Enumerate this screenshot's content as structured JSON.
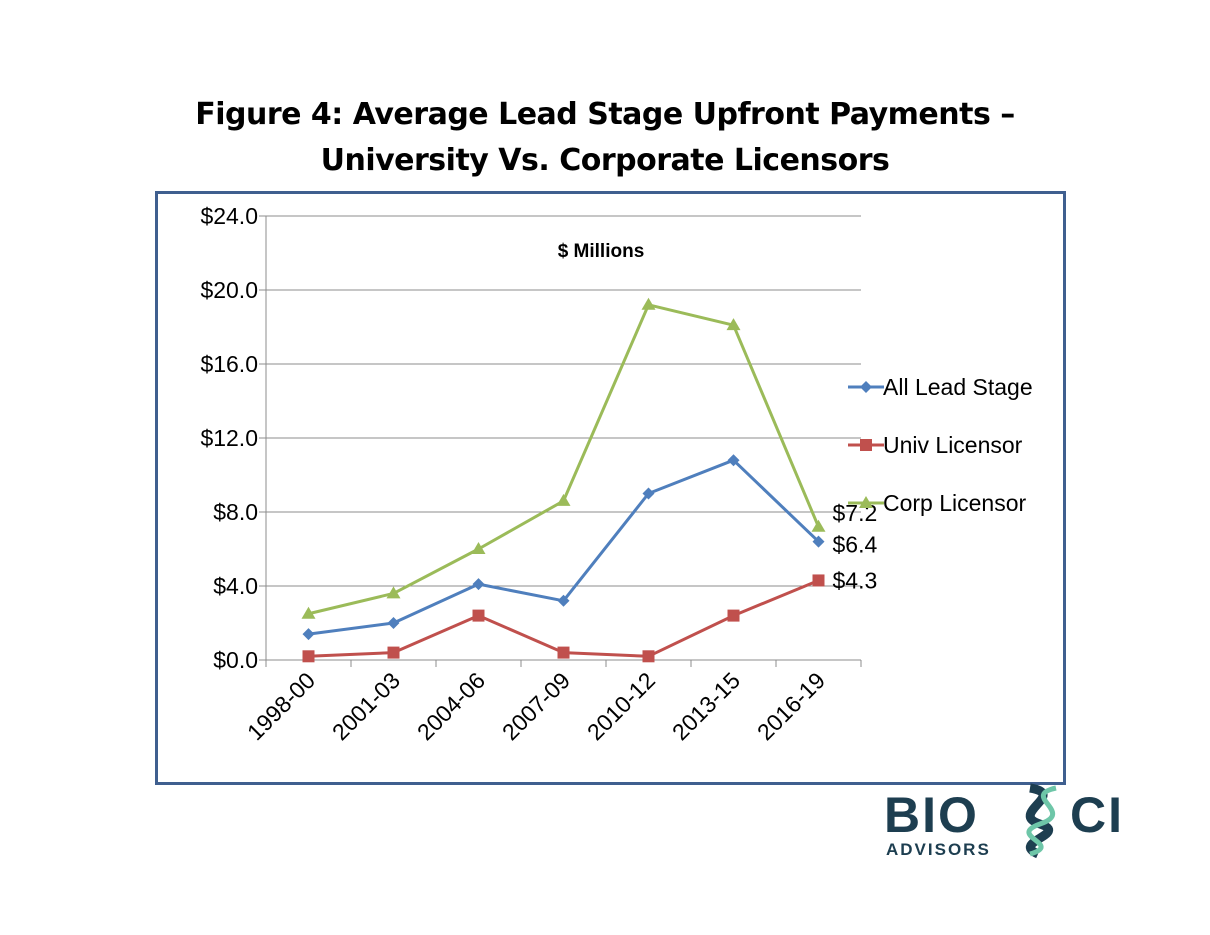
{
  "title": {
    "line1": "Figure 4:  Average Lead Stage Upfront Payments –",
    "line2": "University Vs. Corporate Licensors"
  },
  "chart_data": {
    "type": "line",
    "annotation": "$ Millions",
    "categories": [
      "1998-00",
      "2001-03",
      "2004-06",
      "2007-09",
      "2010-12",
      "2013-15",
      "2016-19"
    ],
    "yticks": [
      "$0.0",
      "$4.0",
      "$8.0",
      "$12.0",
      "$16.0",
      "$20.0",
      "$24.0"
    ],
    "ylim": [
      0,
      24
    ],
    "ytick_step": 4,
    "grid": true,
    "legend_position": "right",
    "series": [
      {
        "name": "All Lead Stage",
        "color": "#4f7fbd",
        "marker": "diamond",
        "values": [
          1.4,
          2.0,
          4.1,
          3.2,
          9.0,
          10.8,
          6.4
        ],
        "end_label": "$6.4"
      },
      {
        "name": "Univ Licensor",
        "color": "#c0504d",
        "marker": "square",
        "values": [
          0.2,
          0.4,
          2.4,
          0.4,
          0.2,
          2.4,
          4.3
        ],
        "end_label": "$4.3"
      },
      {
        "name": "Corp Licensor",
        "color": "#9bbb59",
        "marker": "triangle",
        "values": [
          2.5,
          3.6,
          6.0,
          8.6,
          19.2,
          18.1,
          7.2
        ],
        "end_label": "$7.2"
      }
    ]
  },
  "logo": {
    "brand_left": "BIO",
    "brand_right": "CI",
    "tagline": "ADVISORS",
    "dark_color": "#1d3e50",
    "accent_color": "#6ec6a8"
  }
}
